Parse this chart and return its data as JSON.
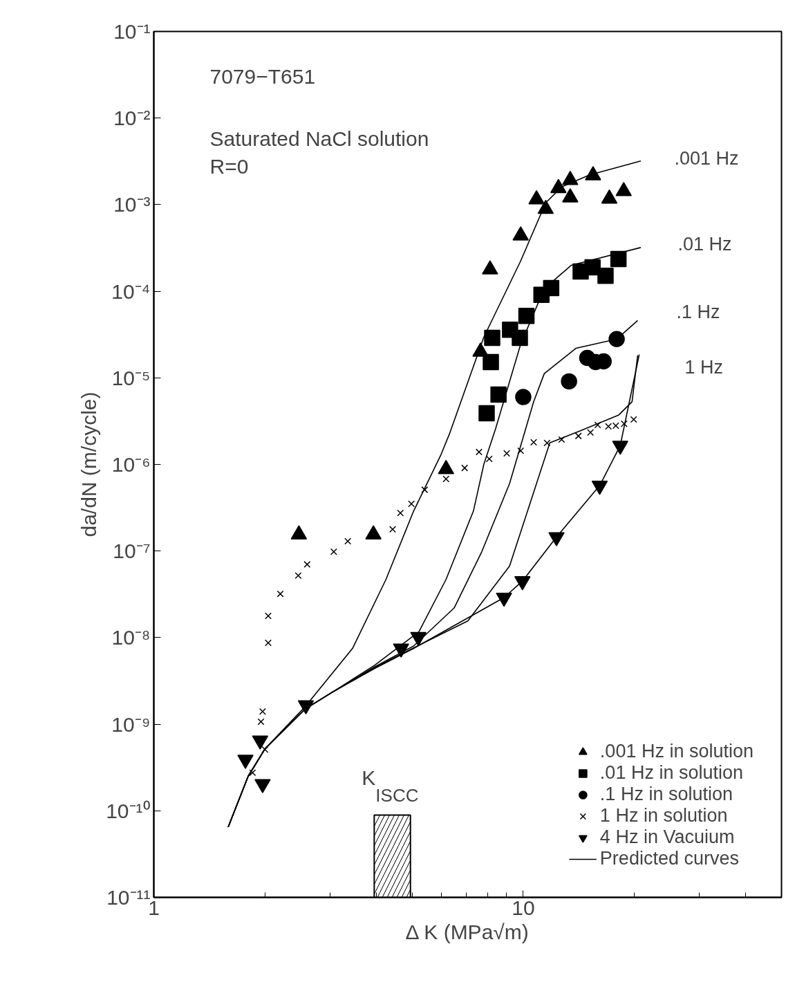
{
  "chart_data": {
    "type": "scatter",
    "xlabel": "Δ K (MPa√m)",
    "ylabel": "da/dN (m/cycle)",
    "log": "xy",
    "grid": false,
    "legend": "bottom right",
    "xlim": [
      1,
      50
    ],
    "xticks": [
      1,
      {
        "value": 2,
        "label": null
      },
      {
        "value": 3,
        "label": null
      },
      {
        "value": 4,
        "label": null
      },
      {
        "value": 5,
        "label": null
      },
      {
        "value": 6,
        "label": null
      },
      {
        "value": 7,
        "label": null
      },
      {
        "value": 8,
        "label": null
      },
      {
        "value": 9,
        "label": null
      },
      10,
      {
        "value": 20,
        "label": null
      },
      {
        "value": 30,
        "label": null
      },
      {
        "value": 40,
        "label": null
      }
    ],
    "ylim": [
      1e-11,
      0.1
    ],
    "yticks": [
      {
        "value": 1e-11,
        "label": "10⁻¹¹"
      },
      {
        "value": 1e-10,
        "label": "10⁻¹⁰"
      },
      {
        "value": 1e-09,
        "label": "10⁻⁹"
      },
      {
        "value": 1e-08,
        "label": "10⁻⁸"
      },
      {
        "value": 1e-07,
        "label": "10⁻⁷"
      },
      {
        "value": 1e-06,
        "label": "10⁻⁶"
      },
      {
        "value": 1e-05,
        "label": "10⁻⁵"
      },
      {
        "value": 0.0001,
        "label": "10⁻⁴"
      },
      {
        "value": 0.001,
        "label": "10⁻³"
      },
      {
        "value": 0.01,
        "label": "10⁻²"
      },
      {
        "value": 0.1,
        "label": "10⁻¹"
      }
    ],
    "series": [
      {
        "name": ".001 Hz in solution",
        "marker": "triangle",
        "color": "#000000",
        "x": [
          2.47,
          3.93,
          6.18,
          7.66,
          8.13,
          9.84,
          10.86,
          11.5,
          12.45,
          13.4,
          13.4,
          15.45,
          17.1,
          18.7
        ],
        "values": [
          1.55e-07,
          1.55e-07,
          8.8e-07,
          2e-05,
          0.000178,
          0.00044,
          0.00115,
          0.00089,
          0.00155,
          0.00121,
          0.00192,
          0.00218,
          0.00117,
          0.00143
        ]
      },
      {
        "name": ".01 Hz in solution",
        "marker": "square",
        "color": "#000000",
        "x": [
          7.96,
          8.57,
          8.17,
          8.24,
          9.21,
          9.79,
          10.2,
          11.2,
          11.9,
          14.3,
          15.4,
          16.7,
          18.1
        ],
        "values": [
          3.9e-06,
          6.4e-06,
          1.52e-05,
          2.9e-05,
          3.6e-05,
          2.9e-05,
          5.2e-05,
          9.1e-05,
          0.000109,
          0.000169,
          0.000189,
          0.000151,
          0.000236
        ]
      },
      {
        "name": ".1 Hz in solution",
        "marker": "circle",
        "color": "#000000",
        "x": [
          10.0,
          13.3,
          14.9,
          15.7,
          16.5,
          17.9
        ],
        "values": [
          6e-06,
          9.1e-06,
          1.7e-05,
          1.52e-05,
          1.55e-05,
          2.8e-05
        ]
      },
      {
        "name": "1 Hz in solution",
        "marker": "cross",
        "color": "#000000",
        "x": [
          1.85,
          1.95,
          1.97,
          2.0,
          2.04,
          2.04,
          2.2,
          2.46,
          2.6,
          3.07,
          3.35,
          4.43,
          4.65,
          4.98,
          5.41,
          6.18,
          6.94,
          7.59,
          8.09,
          9.02,
          9.84,
          10.67,
          11.6,
          12.7,
          14.1,
          15.2,
          15.9,
          17.0,
          17.8,
          18.75,
          19.9
        ],
        "values": [
          2.75e-10,
          1.07e-09,
          1.4e-09,
          5.1e-10,
          8.7e-09,
          1.78e-08,
          3.2e-08,
          5.2e-08,
          7e-08,
          9.8e-08,
          1.3e-07,
          1.78e-07,
          2.75e-07,
          3.5e-07,
          5.1e-07,
          6.8e-07,
          9.1e-07,
          1.39e-06,
          1.16e-06,
          1.34e-06,
          1.44e-06,
          1.8e-06,
          1.77e-06,
          1.94e-06,
          2.13e-06,
          2.34e-06,
          2.85e-06,
          2.75e-06,
          2.8e-06,
          2.95e-06,
          3.3e-06
        ]
      },
      {
        "name": "4 Hz in Vacuium",
        "color": "#000000",
        "x": [
          1.77,
          1.94,
          1.97,
          2.58,
          4.67,
          5.2,
          8.87,
          9.95,
          12.3,
          16.1,
          18.3
        ],
        "values": [
          3.9e-10,
          6.5e-10,
          2.04e-10,
          1.66e-09,
          7.5e-09,
          1.02e-08,
          2.9e-08,
          4.5e-08,
          1.45e-07,
          5.7e-07,
          1.65e-06
        ]
      },
      {
        "name": "Predicted curves",
        "type": "line",
        "line_style": "solid",
        "color": "#000000",
        "x": [
          1.59,
          1.8,
          2.0,
          2.57,
          3.45,
          4.25,
          5.05,
          5.97,
          6.31,
          7.82,
          9.84,
          11.5,
          12.7,
          15.1,
          20.8
        ],
        "values": [
          6.5e-11,
          2.5e-10,
          5.2e-10,
          1.6e-09,
          7.5e-09,
          4.7e-08,
          2.9e-07,
          1.26e-06,
          2.24e-06,
          2.95e-05,
          0.000224,
          0.00105,
          0.0016,
          0.0022,
          0.0032
        ]
      },
      {
        "type": "line",
        "line_style": "solid",
        "color": "#000000",
        "x": [
          1.59,
          1.8,
          2.0,
          2.57,
          3.02,
          3.96,
          5.22,
          6.18,
          7.33,
          7.82,
          8.42,
          9.84,
          11.4,
          13.5,
          20.8
        ],
        "values": [
          6.5e-11,
          2.5e-10,
          5.2e-10,
          1.5e-09,
          2.3e-09,
          4.8e-09,
          1.17e-08,
          4.7e-08,
          2.9e-07,
          1e-06,
          2.6e-06,
          2.45e-05,
          0.000107,
          0.0002,
          0.00032
        ]
      },
      {
        "type": "line",
        "line_style": "solid",
        "color": "#000000",
        "x": [
          1.59,
          1.8,
          2.0,
          2.57,
          3.02,
          3.96,
          5.05,
          6.5,
          7.72,
          9.18,
          10.67,
          11.4,
          13.9,
          17.9,
          20.4
        ],
        "values": [
          6.5e-11,
          2.5e-10,
          5.2e-10,
          1.5e-09,
          2.3e-09,
          4.6e-09,
          8e-09,
          2.2e-08,
          9.8e-08,
          6e-07,
          5.3e-06,
          1.12e-05,
          2.2e-05,
          2.8e-05,
          4.6e-05
        ]
      },
      {
        "type": "line",
        "line_style": "solid",
        "color": "#000000",
        "x": [
          1.59,
          1.8,
          2.0,
          2.57,
          3.02,
          3.96,
          5.05,
          7.08,
          9.18,
          10.86,
          11.8,
          14.1,
          18.1,
          19.7,
          20.4
        ],
        "values": [
          6.5e-11,
          2.5e-10,
          5.2e-10,
          1.5e-09,
          2.3e-09,
          4.5e-09,
          7.6e-09,
          1.56e-08,
          6.7e-08,
          6e-07,
          1.78e-06,
          2.4e-06,
          3.7e-06,
          5.3e-06,
          1.82e-05
        ]
      },
      {
        "type": "line",
        "line_style": "solid",
        "color": "#000000",
        "x": [
          1.59,
          1.8,
          2.0,
          2.57,
          3.02,
          3.96,
          5.05,
          8.87,
          9.95,
          12.3,
          16.1,
          18.3,
          20.6
        ],
        "values": [
          6.5e-11,
          2.5e-10,
          5.2e-10,
          1.5e-09,
          2.3e-09,
          4.4e-09,
          7.5e-09,
          2.9e-08,
          4.5e-08,
          1.45e-07,
          5.7e-07,
          1.65e-06,
          1.86e-05
        ]
      }
    ],
    "bands": [
      {
        "axis": "x",
        "from": 3.95,
        "to": 4.95,
        "label": "K$_{ISCC}$"
      }
    ],
    "annotations": [
      "7079−T651",
      "Saturated NaCl solution",
      "R=0",
      ".001 Hz",
      ".01 Hz",
      ".1 Hz",
      "1 Hz"
    ]
  }
}
